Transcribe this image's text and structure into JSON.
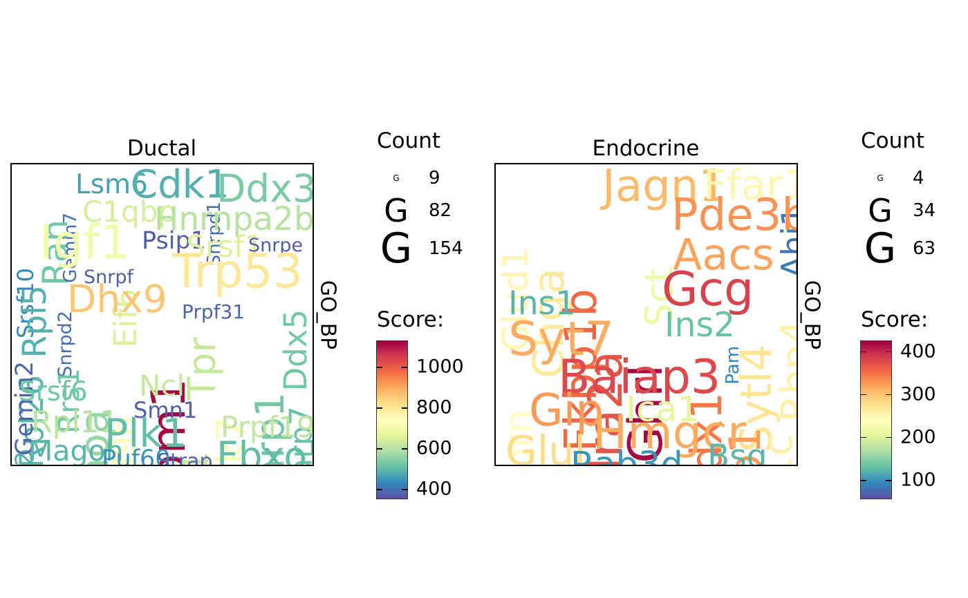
{
  "chart_data": [
    {
      "type": "wordcloud",
      "title": "Ductal",
      "strip_label": "GO_BP",
      "legend": {
        "count_title": "Count",
        "count_symbol": "G",
        "count_values": [
          9,
          82,
          154
        ],
        "score_title": "Score:",
        "score_range": [
          350,
          1130
        ],
        "score_ticks": [
          400,
          600,
          800,
          1000
        ]
      },
      "words": [
        {
          "text": "Srsf10",
          "score": 430,
          "count": 20
        },
        {
          "text": "Ran",
          "score": 520,
          "count": 70
        },
        {
          "text": "Gemin7",
          "score": 390,
          "count": 9
        },
        {
          "text": "Lsm6",
          "score": 460,
          "count": 35
        },
        {
          "text": "Cdk1",
          "score": 480,
          "count": 95
        },
        {
          "text": "Snrpd1",
          "score": 390,
          "count": 9
        },
        {
          "text": "Ddx3x",
          "score": 530,
          "count": 90
        },
        {
          "text": "C1qbp",
          "score": 640,
          "count": 45
        },
        {
          "text": "Hnrnpa2b1",
          "score": 600,
          "count": 60
        },
        {
          "text": "Igf1",
          "score": 700,
          "count": 154
        },
        {
          "text": "Rpl5",
          "score": 480,
          "count": 60
        },
        {
          "text": "Psip1",
          "score": 370,
          "count": 25
        },
        {
          "text": "Srsf1",
          "score": 650,
          "count": 50
        },
        {
          "text": "Snrpe",
          "score": 370,
          "count": 11
        },
        {
          "text": "Eif6",
          "score": 650,
          "count": 55
        },
        {
          "text": "Trp53",
          "score": 800,
          "count": 154
        },
        {
          "text": "Ddx5",
          "score": 520,
          "count": 55
        },
        {
          "text": "Snrpf",
          "score": 370,
          "count": 11
        },
        {
          "text": "Dhx9",
          "score": 860,
          "count": 90
        },
        {
          "text": "Npm1",
          "score": 1120,
          "count": 154
        },
        {
          "text": "Rpl26",
          "score": 490,
          "count": 60
        },
        {
          "text": "Snrpd2",
          "score": 390,
          "count": 11
        },
        {
          "text": "Gemin2",
          "score": 380,
          "count": 25
        },
        {
          "text": "Rrs1",
          "score": 520,
          "count": 45
        },
        {
          "text": "Rhoa",
          "score": 560,
          "count": 100
        },
        {
          "text": "Ddx39b",
          "score": 720,
          "count": 55
        },
        {
          "text": "Tpr",
          "score": 620,
          "count": 90
        },
        {
          "text": "Prpf31",
          "score": 380,
          "count": 12
        },
        {
          "text": "Park7",
          "score": 720,
          "count": 100
        },
        {
          "text": "Parp1",
          "score": 520,
          "count": 100
        },
        {
          "text": "Larp7",
          "score": 510,
          "count": 55
        },
        {
          "text": "Ncl",
          "score": 620,
          "count": 45
        },
        {
          "text": "Srsf6",
          "score": 520,
          "count": 35
        },
        {
          "text": "Cdt1",
          "score": 620,
          "count": 80
        },
        {
          "text": "Smn1",
          "score": 370,
          "count": 20
        },
        {
          "text": "Rpl11",
          "score": 600,
          "count": 50
        },
        {
          "text": "Prpf19",
          "score": 610,
          "count": 45
        },
        {
          "text": "Celf2",
          "score": 480,
          "count": 25
        },
        {
          "text": "Plk1",
          "score": 500,
          "count": 100
        },
        {
          "text": "Magoh",
          "score": 490,
          "count": 40
        },
        {
          "text": "Puf60",
          "score": 440,
          "count": 25
        },
        {
          "text": "Strap",
          "score": 380,
          "count": 16
        },
        {
          "text": "Fbxo5",
          "score": 500,
          "count": 90
        }
      ]
    },
    {
      "type": "wordcloud",
      "title": "Endocrine",
      "strip_label": "GO_BP",
      "legend": {
        "count_title": "Count",
        "count_symbol": "G",
        "count_values": [
          4,
          34,
          63
        ],
        "score_title": "Score:",
        "score_range": [
          55,
          425
        ],
        "score_ticks": [
          100,
          200,
          300,
          400
        ]
      },
      "words": [
        {
          "text": "Glud1",
          "score": 250,
          "count": 30
        },
        {
          "text": "Chga",
          "score": 265,
          "count": 50
        },
        {
          "text": "Fkbp1b",
          "score": 355,
          "count": 55
        },
        {
          "text": "Jagn1",
          "score": 305,
          "count": 55
        },
        {
          "text": "Ffar1",
          "score": 250,
          "count": 45
        },
        {
          "text": "Ahi1",
          "score": 80,
          "count": 25
        },
        {
          "text": "Pde3b",
          "score": 330,
          "count": 55
        },
        {
          "text": "Adra2a",
          "score": 370,
          "count": 63
        },
        {
          "text": "Sct",
          "score": 215,
          "count": 35
        },
        {
          "text": "Aacs",
          "score": 320,
          "count": 50
        },
        {
          "text": "Ghrl",
          "score": 420,
          "count": 63
        },
        {
          "text": "Gcg",
          "score": 385,
          "count": 63
        },
        {
          "text": "Ins1",
          "score": 120,
          "count": 25
        },
        {
          "text": "Sytl4",
          "score": 270,
          "count": 50
        },
        {
          "text": "Rbp4",
          "score": 255,
          "count": 40
        },
        {
          "text": "Ins2",
          "score": 130,
          "count": 28
        },
        {
          "text": "Syt7",
          "score": 315,
          "count": 63
        },
        {
          "text": "Pam",
          "score": 90,
          "count": 4
        },
        {
          "text": "Pdx1",
          "score": 345,
          "count": 50
        },
        {
          "text": "Serp1",
          "score": 325,
          "count": 50
        },
        {
          "text": "Baiap3",
          "score": 380,
          "count": 63
        },
        {
          "text": "Ptprn",
          "score": 240,
          "count": 35
        },
        {
          "text": "Gip",
          "score": 325,
          "count": 55
        },
        {
          "text": "Ica1",
          "score": 205,
          "count": 30
        },
        {
          "text": "Acvr1c",
          "score": 255,
          "count": 45
        },
        {
          "text": "Hmgcr",
          "score": 315,
          "count": 60
        },
        {
          "text": "Glul",
          "score": 280,
          "count": 45
        },
        {
          "text": "Rab3d",
          "score": 100,
          "count": 30
        },
        {
          "text": "Bsg",
          "score": 120,
          "count": 25
        }
      ]
    }
  ]
}
